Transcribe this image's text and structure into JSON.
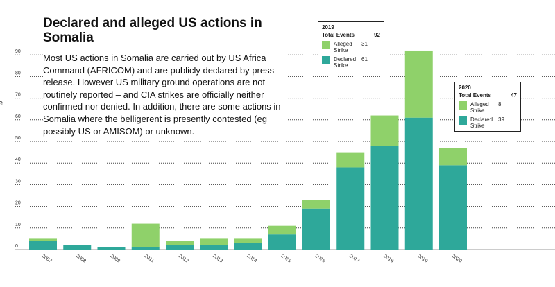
{
  "edge_text": "e",
  "title": "Declared and alleged US actions in Somalia",
  "description": "Most US actions in Somalia are carried out by US Africa Command (AFRICOM) and are publicly declared by press release. However US military ground operations are not routinely reported – and CIA strikes are officially neither confirmed nor denied. In addition, there are some actions in Somalia where the belligerent is presently contested (eg possibly US or AMISOM) or unknown.",
  "colors": {
    "declared": "#2ea89a",
    "alleged": "#8fd16a",
    "grid": "#444444"
  },
  "tooltips": [
    {
      "year": "2019",
      "total_label": "Total Events",
      "total": "92",
      "rows": [
        {
          "label": "Alleged Strike",
          "value": "31",
          "color": "alleged"
        },
        {
          "label": "Declared Strike",
          "value": "61",
          "color": "declared"
        }
      ]
    },
    {
      "year": "2020",
      "total_label": "Total Events",
      "total": "47",
      "rows": [
        {
          "label": "Alleged Strike",
          "value": "8",
          "color": "alleged"
        },
        {
          "label": "Declared Strike",
          "value": "39",
          "color": "declared"
        }
      ]
    }
  ],
  "chart_data": {
    "type": "bar",
    "stacked": true,
    "categories": [
      "2007",
      "2008",
      "2009",
      "2011",
      "2012",
      "2013",
      "2014",
      "2015",
      "2016",
      "2017",
      "2018",
      "2019",
      "2020"
    ],
    "series": [
      {
        "name": "Declared Strike",
        "color": "#2ea89a",
        "values": [
          4,
          2,
          1,
          1,
          2,
          2,
          3,
          7,
          19,
          38,
          48,
          61,
          39
        ]
      },
      {
        "name": "Alleged Strike",
        "color": "#8fd16a",
        "values": [
          1,
          0,
          0,
          11,
          2,
          3,
          2,
          4,
          4,
          7,
          14,
          31,
          8
        ]
      }
    ],
    "yticks": [
      0,
      10,
      20,
      30,
      40,
      50,
      60,
      70,
      80,
      90
    ],
    "ylim": [
      0,
      92
    ],
    "grid": true,
    "legend": "none"
  }
}
